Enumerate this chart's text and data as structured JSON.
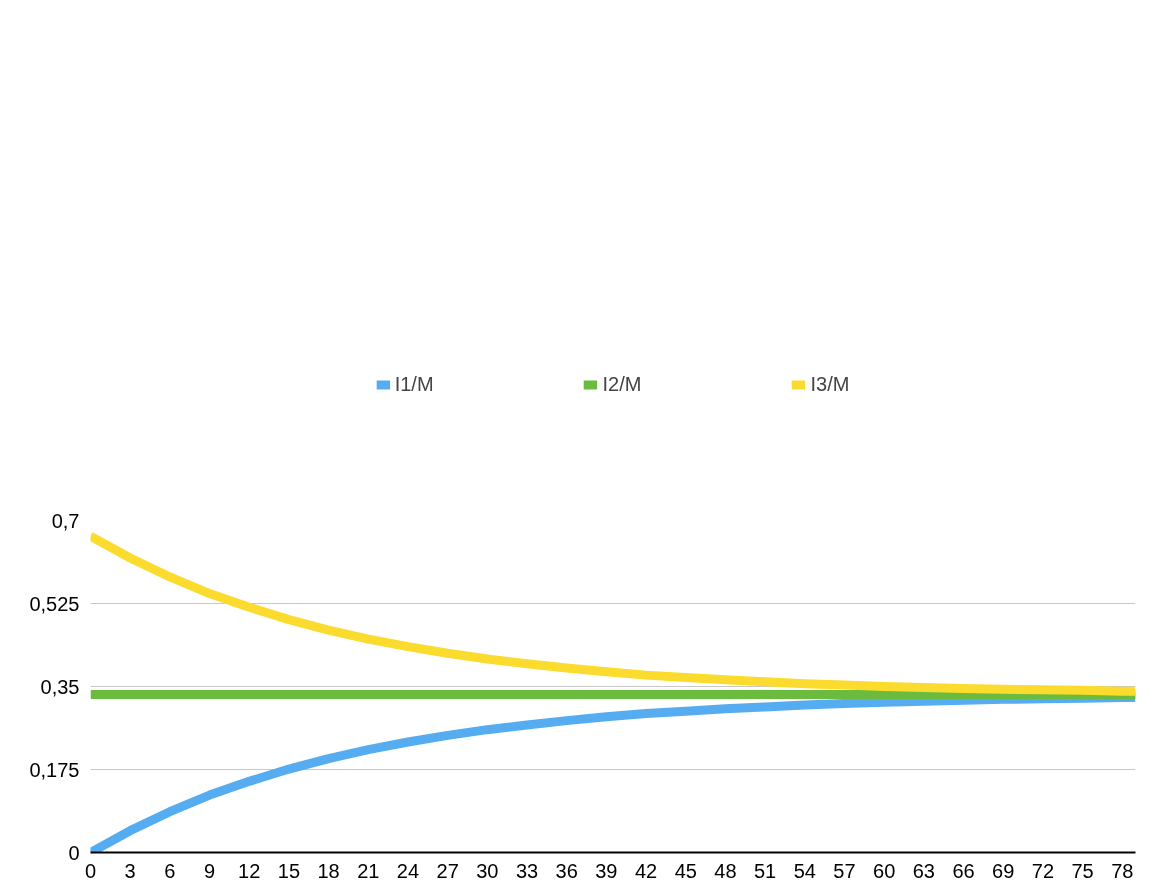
{
  "chart_data": {
    "type": "line",
    "x": [
      0,
      3,
      6,
      9,
      12,
      15,
      18,
      21,
      24,
      27,
      30,
      33,
      36,
      39,
      42,
      45,
      48,
      51,
      54,
      57,
      60,
      63,
      66,
      69,
      72,
      75,
      78,
      79
    ],
    "series": [
      {
        "name": "I1/M",
        "color": "#55acf0",
        "values": [
          0,
          0.046,
          0.086,
          0.121,
          0.15,
          0.176,
          0.198,
          0.217,
          0.233,
          0.247,
          0.259,
          0.269,
          0.278,
          0.286,
          0.293,
          0.298,
          0.303,
          0.307,
          0.311,
          0.314,
          0.317,
          0.319,
          0.321,
          0.323,
          0.324,
          0.325,
          0.327,
          0.327
        ]
      },
      {
        "name": "I2/M",
        "color": "#6bbb3f",
        "values": [
          0.333,
          0.333,
          0.333,
          0.333,
          0.333,
          0.333,
          0.333,
          0.333,
          0.333,
          0.333,
          0.333,
          0.333,
          0.333,
          0.333,
          0.333,
          0.333,
          0.333,
          0.333,
          0.333,
          0.333,
          0.333,
          0.333,
          0.333,
          0.333,
          0.333,
          0.333,
          0.333,
          0.333
        ]
      },
      {
        "name": "I3/M",
        "color": "#fbdc2e",
        "values": [
          0.667,
          0.621,
          0.581,
          0.546,
          0.517,
          0.491,
          0.469,
          0.45,
          0.434,
          0.42,
          0.408,
          0.398,
          0.389,
          0.381,
          0.374,
          0.369,
          0.364,
          0.36,
          0.356,
          0.353,
          0.35,
          0.348,
          0.346,
          0.344,
          0.343,
          0.342,
          0.34,
          0.34
        ]
      }
    ],
    "xlim": [
      0,
      79
    ],
    "xticks": [
      0,
      3,
      6,
      9,
      12,
      15,
      18,
      21,
      24,
      27,
      30,
      33,
      36,
      39,
      42,
      45,
      48,
      51,
      54,
      57,
      60,
      63,
      66,
      69,
      72,
      75,
      78
    ],
    "ylim": [
      0,
      0.7
    ],
    "yticks": [
      {
        "value": 0,
        "label": "0"
      },
      {
        "value": 0.175,
        "label": "0,175"
      },
      {
        "value": 0.35,
        "label": "0,35"
      },
      {
        "value": 0.525,
        "label": "0,525"
      },
      {
        "value": 0.7,
        "label": "0,7"
      }
    ],
    "grid": "y",
    "legend": "top",
    "line_style": "solid",
    "marker": "none"
  }
}
